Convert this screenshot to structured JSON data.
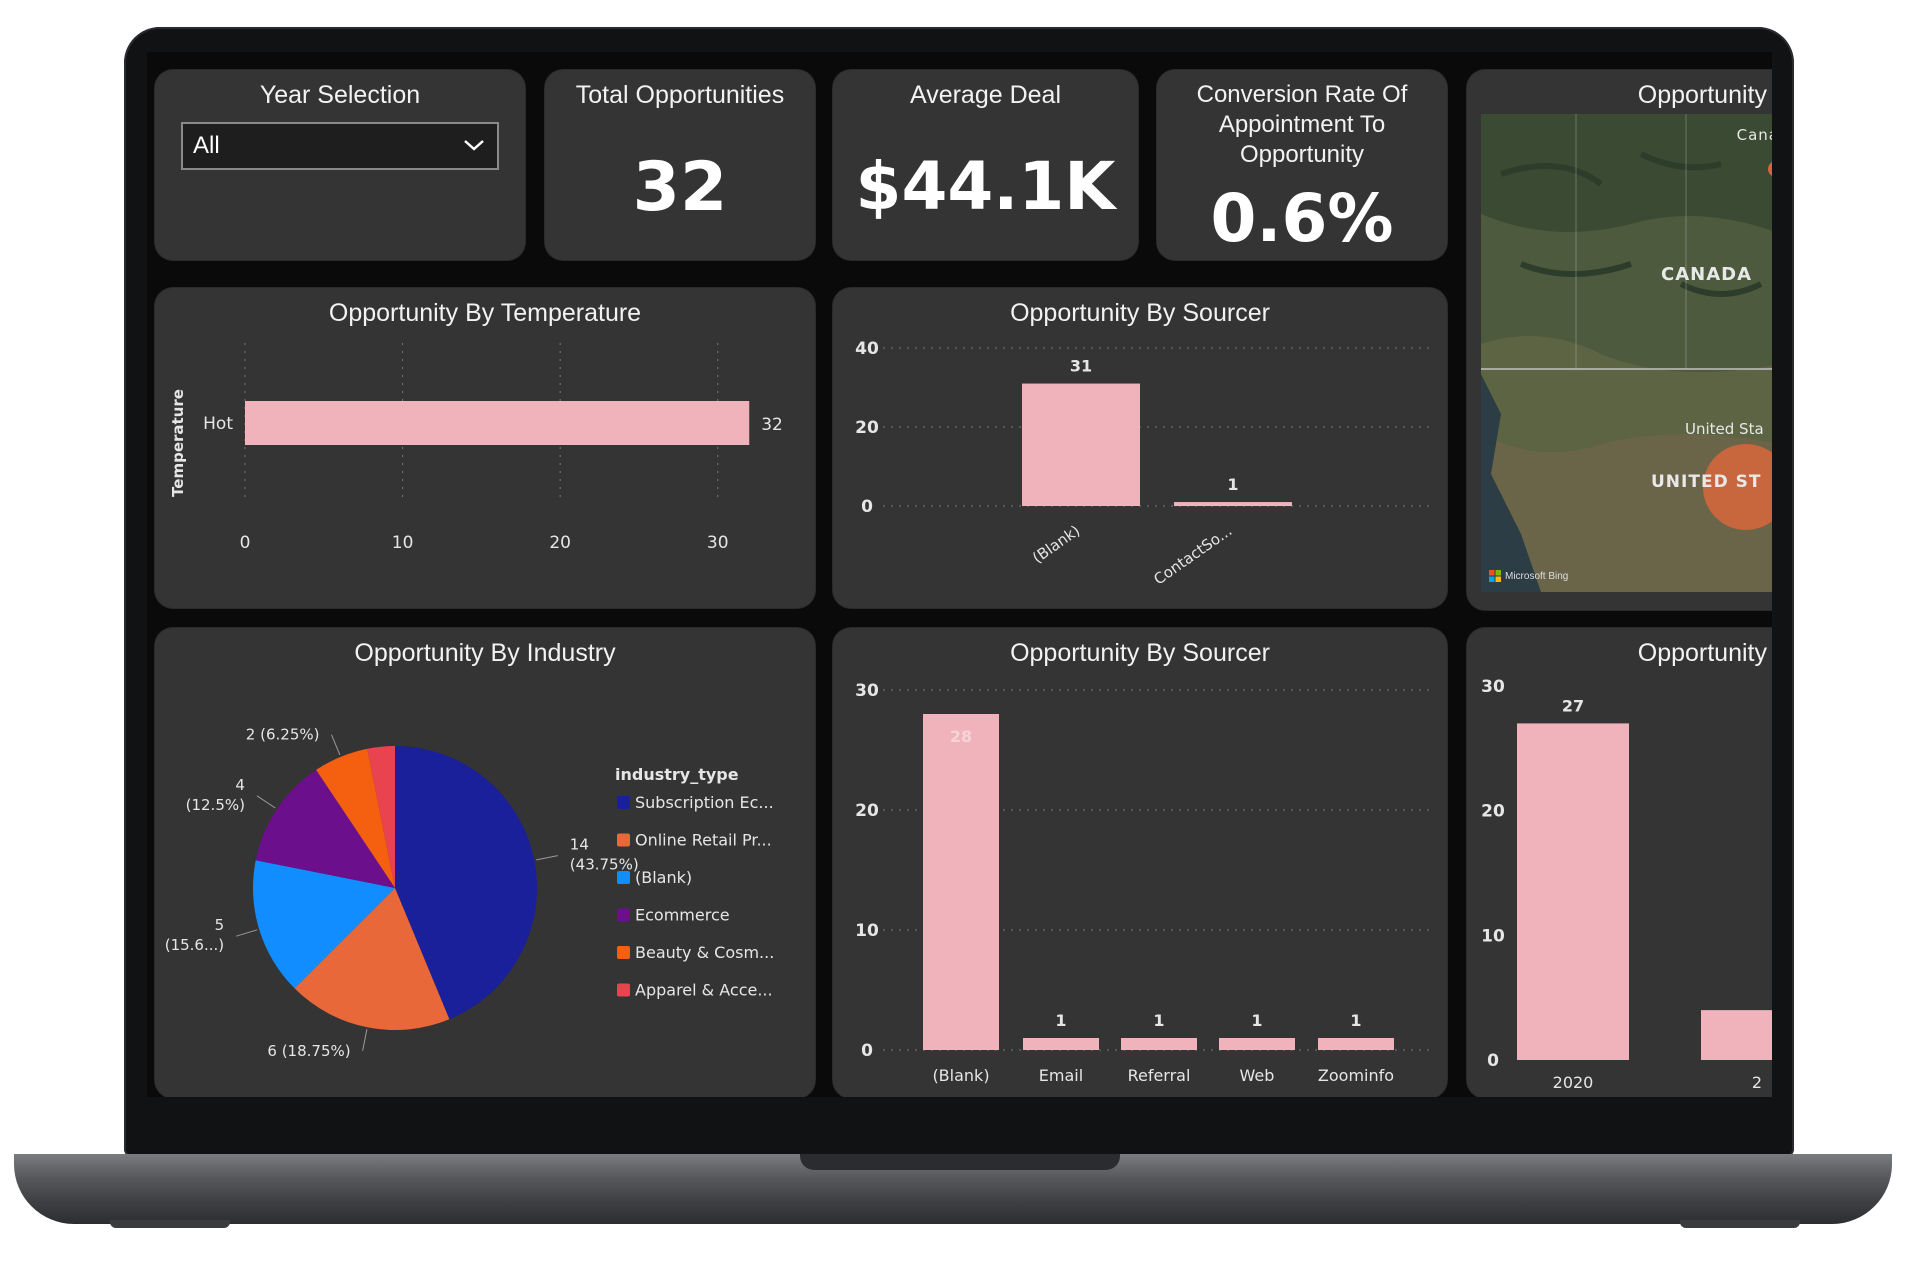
{
  "filters": {
    "year_selection_title": "Year Selection",
    "year_selection_value": "All"
  },
  "kpis": {
    "total_opportunities_title": "Total Opportunities",
    "total_opportunities_value": "32",
    "average_deal_title": "Average Deal",
    "average_deal_value": "$44.1K",
    "conversion_title": "Conversion Rate Of Appointment To Opportunity",
    "conversion_value": "0.6%"
  },
  "map": {
    "title": "Opportunity",
    "labels": [
      "Cana",
      "CANADA",
      "United Sta",
      "UNITED ST"
    ],
    "attribution": "Microsoft Bing"
  },
  "chart_data": [
    {
      "type": "bar",
      "orientation": "horizontal",
      "title": "Opportunity By Temperature",
      "ylabel": "Temperature",
      "categories": [
        "Hot"
      ],
      "values": [
        32
      ],
      "xticks": [
        0,
        10,
        20,
        30
      ],
      "xlim": [
        0,
        33
      ],
      "color": "#f0b3bb",
      "grid": true
    },
    {
      "type": "bar",
      "title": "Opportunity By Sourcer",
      "categories": [
        "(Blank)",
        "ContactSo..."
      ],
      "values": [
        31,
        1
      ],
      "yticks": [
        0,
        20,
        40
      ],
      "ylim": [
        0,
        40
      ],
      "color": "#f0b3bb",
      "grid": true
    },
    {
      "type": "pie",
      "title": "Opportunity By Industry",
      "legend_title": "industry_type",
      "legend_position": "right",
      "slices": [
        {
          "label": "Subscription Ec...",
          "value": 14,
          "data_label": "14",
          "pct_label": "(43.75%)",
          "color": "#1a1f9a"
        },
        {
          "label": "Online Retail Pr...",
          "value": 6,
          "data_label": "6 (18.75%)",
          "pct_label": "",
          "color": "#e8683a"
        },
        {
          "label": "(Blank)",
          "value": 5,
          "data_label": "5",
          "pct_label": "(15.6...)",
          "color": "#118dff"
        },
        {
          "label": "Ecommerce",
          "value": 4,
          "data_label": "4",
          "pct_label": "(12.5%)",
          "color": "#6b0f8c"
        },
        {
          "label": "Beauty & Cosm...",
          "value": 2,
          "data_label": "2 (6.25%)",
          "pct_label": "",
          "color": "#f45f10"
        },
        {
          "label": "Apparel & Acce...",
          "value": 1,
          "data_label": "",
          "pct_label": "",
          "color": "#e8434f"
        }
      ]
    },
    {
      "type": "bar",
      "title": "Opportunity By Sourcer",
      "categories": [
        "(Blank)",
        "Email",
        "Referral",
        "Web",
        "Zoominfo"
      ],
      "values": [
        28,
        1,
        1,
        1,
        1
      ],
      "yticks": [
        0,
        10,
        20,
        30
      ],
      "ylim": [
        0,
        30
      ],
      "color": "#f0b3bb",
      "grid": true
    },
    {
      "type": "bar",
      "title": "Opportunity",
      "categories": [
        "2020",
        "2"
      ],
      "values": [
        27,
        4
      ],
      "data_labels": [
        "27",
        ""
      ],
      "yticks": [
        0,
        10,
        20,
        30
      ],
      "ylim": [
        0,
        30
      ],
      "color": "#f0b3bb",
      "grid": false
    }
  ]
}
